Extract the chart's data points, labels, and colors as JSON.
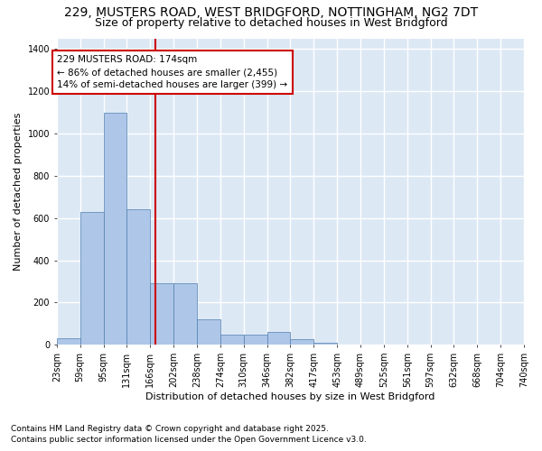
{
  "title_line1": "229, MUSTERS ROAD, WEST BRIDGFORD, NOTTINGHAM, NG2 7DT",
  "title_line2": "Size of property relative to detached houses in West Bridgford",
  "xlabel": "Distribution of detached houses by size in West Bridgford",
  "ylabel": "Number of detached properties",
  "bin_labels": [
    "23sqm",
    "59sqm",
    "95sqm",
    "131sqm",
    "166sqm",
    "202sqm",
    "238sqm",
    "274sqm",
    "310sqm",
    "346sqm",
    "382sqm",
    "417sqm",
    "453sqm",
    "489sqm",
    "525sqm",
    "561sqm",
    "597sqm",
    "632sqm",
    "668sqm",
    "704sqm",
    "740sqm"
  ],
  "bar_heights": [
    30,
    630,
    1100,
    640,
    290,
    290,
    120,
    50,
    50,
    60,
    25,
    10,
    0,
    0,
    0,
    0,
    0,
    0,
    0,
    0
  ],
  "bar_color": "#aec6e8",
  "bar_edge_color": "#5080b0",
  "vline_color": "#cc0000",
  "annotation_line1": "229 MUSTERS ROAD: 174sqm",
  "annotation_line2": "← 86% of detached houses are smaller (2,455)",
  "annotation_line3": "14% of semi-detached houses are larger (399) →",
  "annotation_box_color": "#ffffff",
  "annotation_box_edge": "#cc0000",
  "ylim": [
    0,
    1450
  ],
  "yticks": [
    0,
    200,
    400,
    600,
    800,
    1000,
    1200,
    1400
  ],
  "background_color": "#dde8f5",
  "grid_color": "#ffffff",
  "footer_line1": "Contains HM Land Registry data © Crown copyright and database right 2025.",
  "footer_line2": "Contains public sector information licensed under the Open Government Licence v3.0.",
  "title_fontsize": 10,
  "subtitle_fontsize": 9,
  "axis_label_fontsize": 8,
  "tick_fontsize": 7,
  "annotation_fontsize": 7.5,
  "footer_fontsize": 6.5
}
